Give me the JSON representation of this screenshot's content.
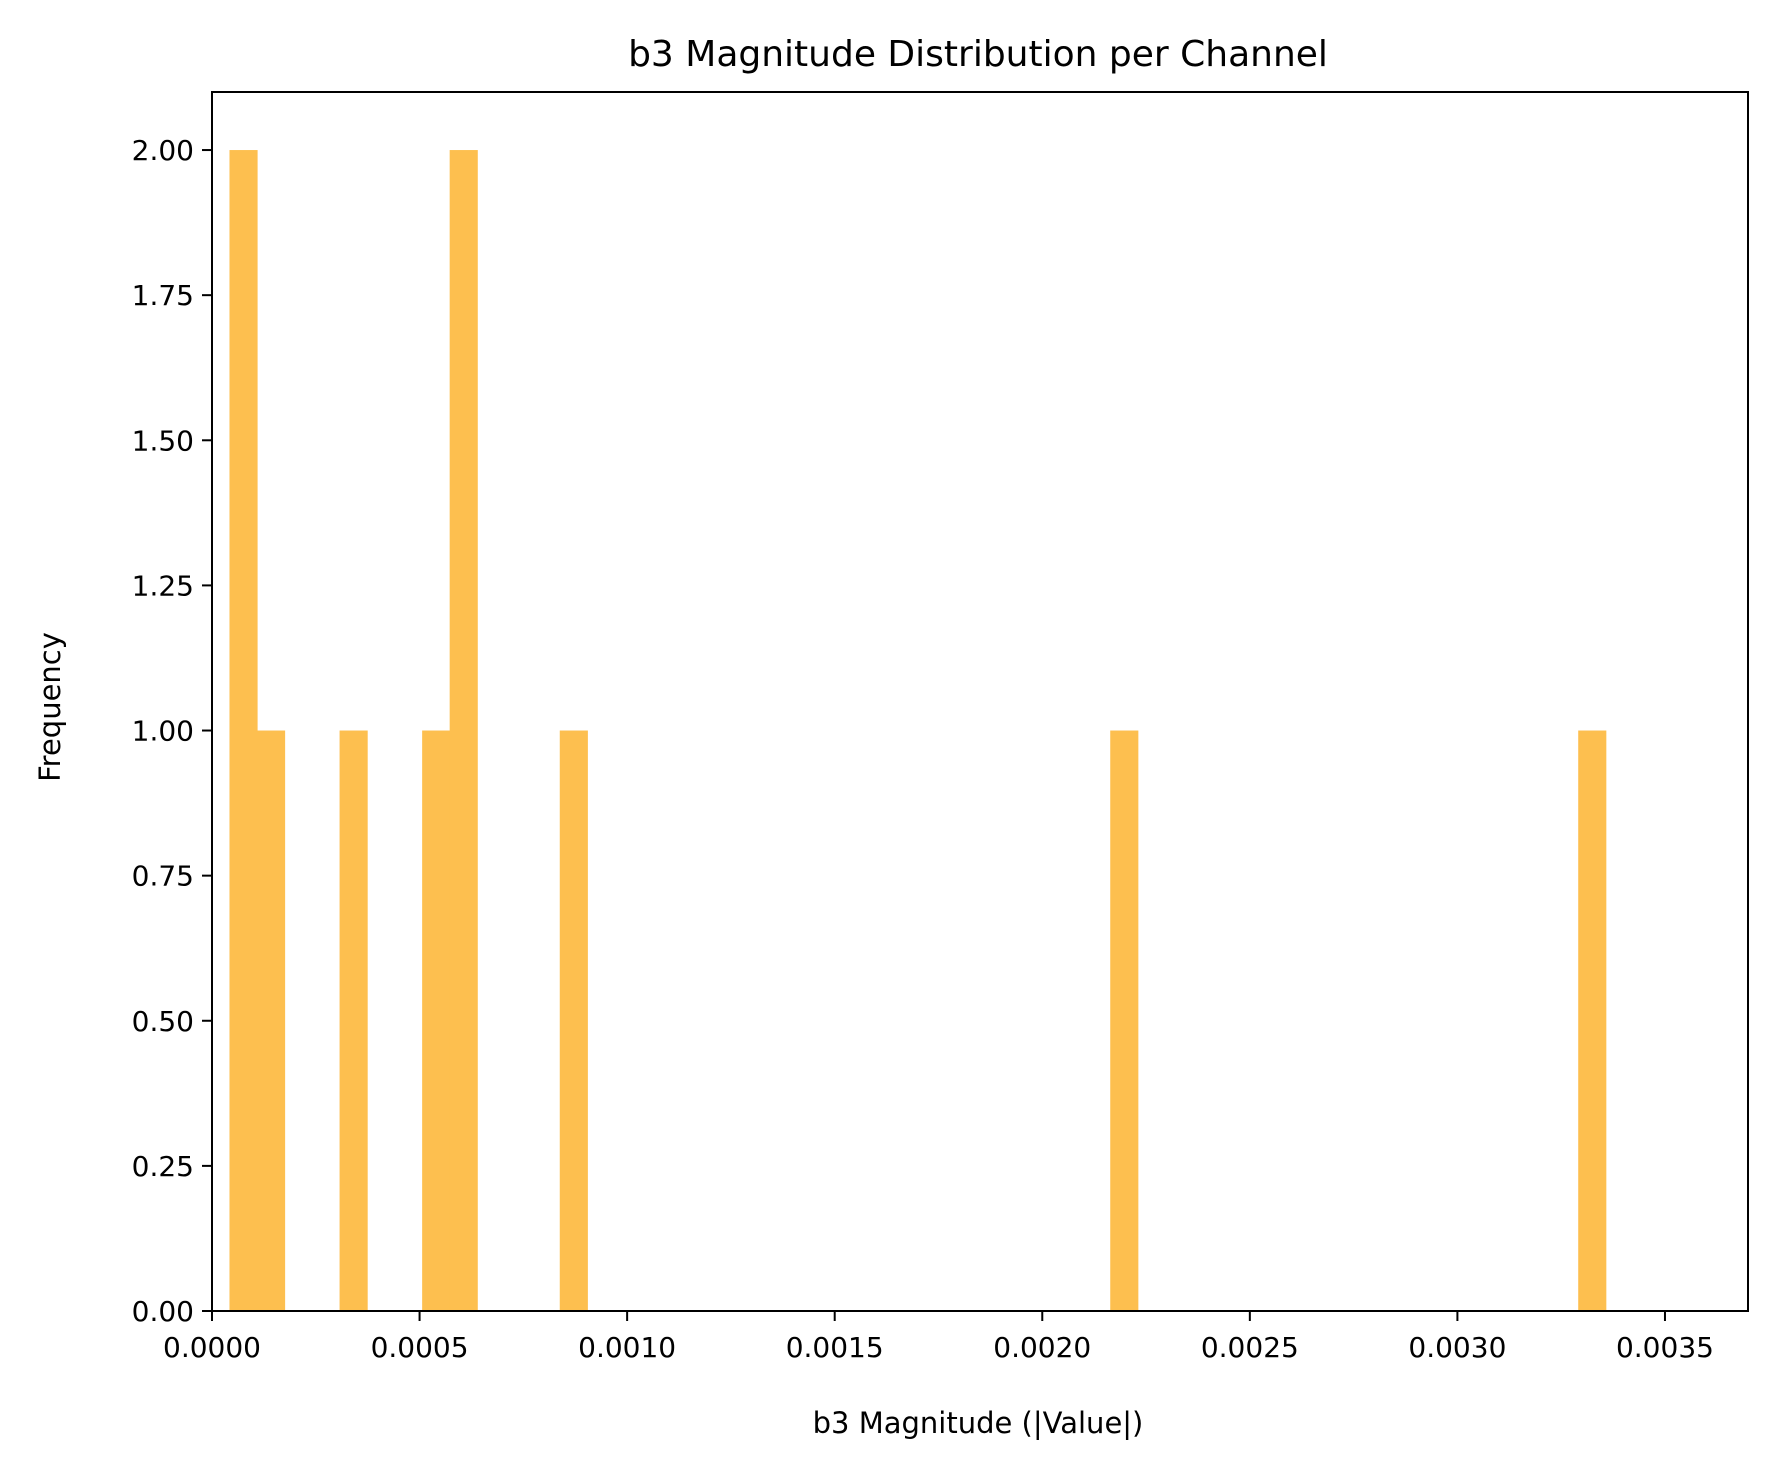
{
  "chart_data": {
    "type": "bar",
    "title": "b3 Magnitude Distribution per Channel",
    "xlabel": "b3 Magnitude (|Value|)",
    "ylabel": "Frequency",
    "xlim": [
      0,
      0.0037
    ],
    "ylim": [
      0,
      2.1
    ],
    "grid": false,
    "color": "#FDBF4F",
    "x_ticks": [
      {
        "value": 0.0,
        "label": "0.0000"
      },
      {
        "value": 0.0005,
        "label": "0.0005"
      },
      {
        "value": 0.001,
        "label": "0.0010"
      },
      {
        "value": 0.0015,
        "label": "0.0015"
      },
      {
        "value": 0.002,
        "label": "0.0020"
      },
      {
        "value": 0.0025,
        "label": "0.0025"
      },
      {
        "value": 0.003,
        "label": "0.0030"
      },
      {
        "value": 0.0035,
        "label": "0.0035"
      }
    ],
    "y_ticks": [
      {
        "value": 0.0,
        "label": "0.00"
      },
      {
        "value": 0.25,
        "label": "0.25"
      },
      {
        "value": 0.5,
        "label": "0.50"
      },
      {
        "value": 0.75,
        "label": "0.75"
      },
      {
        "value": 1.0,
        "label": "1.00"
      },
      {
        "value": 1.25,
        "label": "1.25"
      },
      {
        "value": 1.5,
        "label": "1.50"
      },
      {
        "value": 1.75,
        "label": "1.75"
      },
      {
        "value": 2.0,
        "label": "2.00"
      }
    ],
    "bins": [
      {
        "x0": 4.21e-05,
        "x1": 0.0001084,
        "count": 2
      },
      {
        "x0": 0.0001084,
        "x1": 0.0001747,
        "count": 1
      },
      {
        "x0": 0.0003073,
        "x1": 0.0003736,
        "count": 1
      },
      {
        "x0": 0.0005062,
        "x1": 0.0005725,
        "count": 1
      },
      {
        "x0": 0.0005725,
        "x1": 0.0006388,
        "count": 2
      },
      {
        "x0": 0.0008377,
        "x1": 0.000904,
        "count": 1
      },
      {
        "x0": 0.0021637,
        "x1": 0.00223,
        "count": 1
      },
      {
        "x0": 0.003291,
        "x1": 0.0033573,
        "count": 1
      }
    ]
  }
}
